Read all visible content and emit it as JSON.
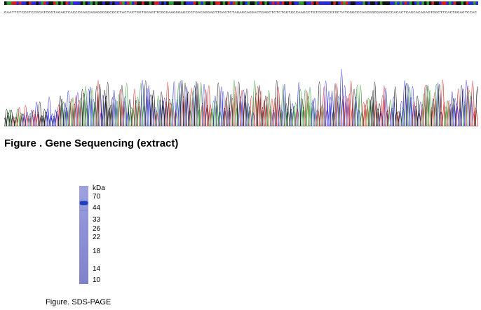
{
  "sequence_header": "GAATTCTCCGTCCGCATCGGTAGAGTCACCCGAGCAGAGGCGGCGCCTACTACTGGTGGAGTTCGCGAAGGGAGCCCTGACAGGAGTTGAGTCTAGAGCAGGACTGAGCTCTCTGGTGCCAAGCCTGTCCCCCGTGCTATCGGCCCAGCGGCGAGGGCCACACTCAGCACAGAGTGGCTTCACTGGAGTCCAC",
  "colors": {
    "A": "#2e9a2e",
    "C": "#2b2bd6",
    "G": "#111111",
    "T": "#d42020"
  },
  "figure1_caption": "Figure . Gene Sequencing (extract)",
  "gel": {
    "unit_label": "kDa",
    "markers": [
      "70",
      "44",
      "33",
      "26",
      "22",
      "18",
      "14",
      "10"
    ],
    "band_kda": 70
  },
  "figure2_caption": "Figure. SDS-PAGE"
}
